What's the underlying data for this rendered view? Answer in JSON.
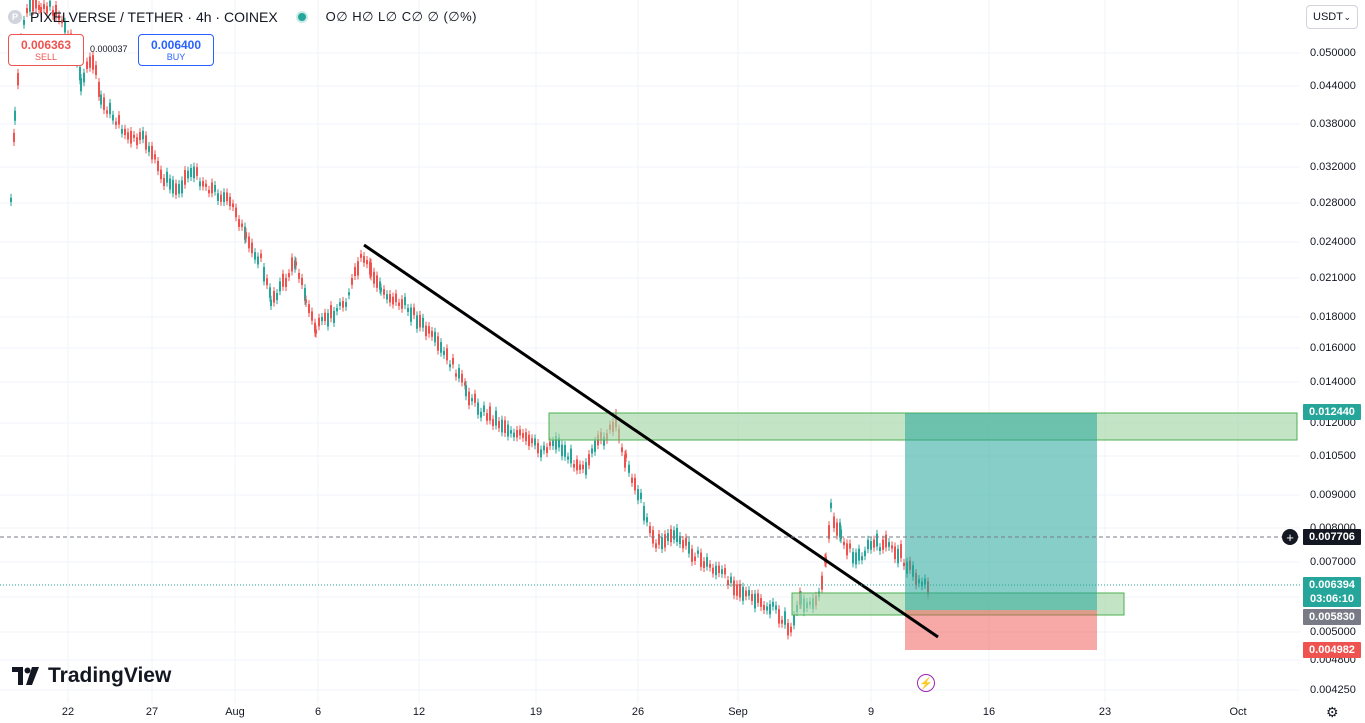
{
  "header": {
    "symbol_icon": "P",
    "title": "PIXELVERSE / TETHER · 4h · COINEX",
    "ohlc": "O∅ H∅ L∅ C∅ ∅ (∅%)"
  },
  "trade": {
    "sell_price": "0.006363",
    "sell_label": "SELL",
    "spread": "0.000037",
    "buy_price": "0.006400",
    "buy_label": "BUY"
  },
  "currency": {
    "value": "USDT",
    "icon": "chevron-down-icon"
  },
  "price_axis": {
    "ticks": [
      "0.050000",
      "0.044000",
      "0.038000",
      "0.032000",
      "0.028000",
      "0.024000",
      "0.021000",
      "0.018000",
      "0.016000",
      "0.014000",
      "0.012000",
      "0.010500",
      "0.009000",
      "0.008000",
      "0.007000",
      "0.006000",
      "0.005000",
      "0.004800",
      "0.004250"
    ],
    "tags": [
      {
        "value": "0.012440",
        "color": "#26a69a"
      },
      {
        "value": "0.007706",
        "color": "#131722"
      },
      {
        "value": "0.006394",
        "color": "#26a69a"
      },
      {
        "value": "03:06:10",
        "color": "#26a69a"
      },
      {
        "value": "0.005830",
        "color": "#787b86"
      },
      {
        "value": "0.004982",
        "color": "#ef5350"
      }
    ]
  },
  "time_axis": {
    "labels": [
      "22",
      "27",
      "Aug",
      "6",
      "12",
      "19",
      "26",
      "Sep",
      "9",
      "16",
      "23",
      "Oct"
    ]
  },
  "branding": {
    "logo_text": "TradingView"
  },
  "colors": {
    "up": "#26a69a",
    "down": "#ef5350",
    "zone": "#a5d6a7",
    "target": "#26a69a",
    "stop": "#ef5350"
  }
}
